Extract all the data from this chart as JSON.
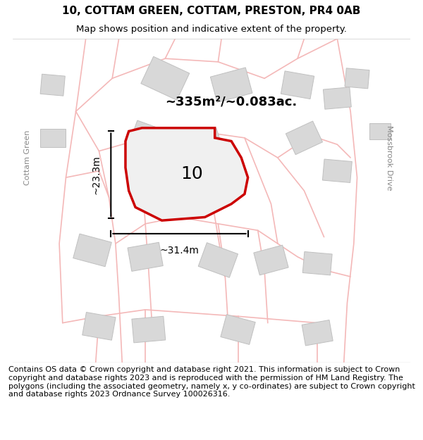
{
  "title_line1": "10, COTTAM GREEN, COTTAM, PRESTON, PR4 0AB",
  "title_line2": "Map shows position and indicative extent of the property.",
  "footer_text": "Contains OS data © Crown copyright and database right 2021. This information is subject to Crown copyright and database rights 2023 and is reproduced with the permission of HM Land Registry. The polygons (including the associated geometry, namely x, y co-ordinates) are subject to Crown copyright and database rights 2023 Ordnance Survey 100026316.",
  "area_label": "~335m²/~0.083ac.",
  "number_label": "10",
  "dim_h_label": "~23.3m",
  "dim_w_label": "~31.4m",
  "left_road_label": "Cottam Green",
  "right_road_label": "Mossbrook Drive",
  "bg_color": "#ffffff",
  "map_bg": "#f5f5f5",
  "property_fill": "#f0f0f0",
  "property_edge": "#cc0000",
  "road_color": "#f4b8b8",
  "building_fill": "#d8d8d8",
  "building_edge": "#c0c0c0",
  "dim_color": "#000000",
  "title_fontsize": 11,
  "subtitle_fontsize": 9.5,
  "footer_fontsize": 8
}
